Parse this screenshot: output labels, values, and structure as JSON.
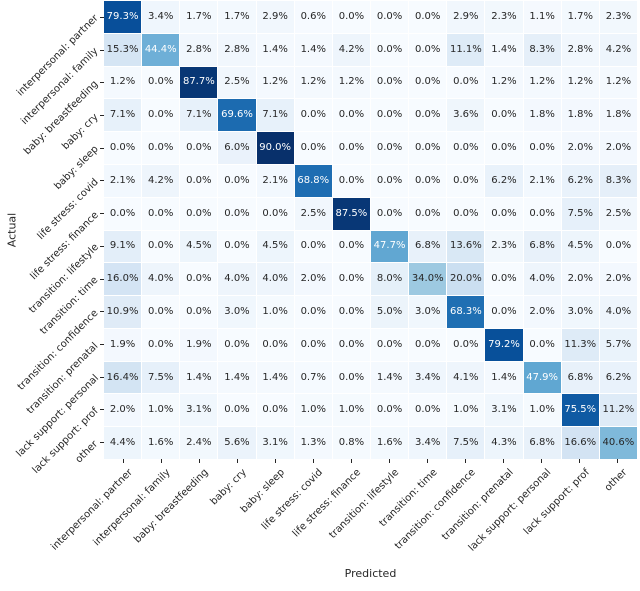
{
  "chart_data": {
    "type": "heatmap",
    "title": "",
    "xlabel": "Predicted",
    "ylabel": "Actual",
    "value_suffix": "%",
    "value_decimals": 1,
    "vmin": 0,
    "vmax": 90,
    "legend": "none",
    "grid": false,
    "colormap": {
      "name": "Blues",
      "stops": [
        [
          0.0,
          "#f7fbff"
        ],
        [
          0.125,
          "#deebf7"
        ],
        [
          0.25,
          "#c6dbef"
        ],
        [
          0.375,
          "#9ecae1"
        ],
        [
          0.5,
          "#6baed6"
        ],
        [
          0.625,
          "#4292c6"
        ],
        [
          0.75,
          "#2171b5"
        ],
        [
          0.875,
          "#08519c"
        ],
        [
          1.0,
          "#08306b"
        ]
      ]
    },
    "annotation_colors": {
      "dark": "#262626",
      "light": "#ffffff"
    },
    "tick_color": "#262626",
    "categories": [
      "interpersonal: partner",
      "interpersonal: family",
      "baby: breastfeeding",
      "baby: cry",
      "baby: sleep",
      "life stress: covid",
      "life stress: finance",
      "transition: lifestyle",
      "transition: time",
      "transition: confidence",
      "transition: prenatal",
      "lack support: personal",
      "lack support: prof",
      "other"
    ],
    "matrix": [
      [
        79.3,
        3.4,
        1.7,
        1.7,
        2.9,
        0.6,
        0.0,
        0.0,
        0.0,
        2.9,
        2.3,
        1.1,
        1.7,
        2.3
      ],
      [
        15.3,
        44.4,
        2.8,
        2.8,
        1.4,
        1.4,
        4.2,
        0.0,
        0.0,
        11.1,
        1.4,
        8.3,
        2.8,
        4.2
      ],
      [
        1.2,
        0.0,
        87.7,
        2.5,
        1.2,
        1.2,
        1.2,
        0.0,
        0.0,
        0.0,
        1.2,
        1.2,
        1.2,
        1.2
      ],
      [
        7.1,
        0.0,
        7.1,
        69.6,
        7.1,
        0.0,
        0.0,
        0.0,
        0.0,
        3.6,
        0.0,
        1.8,
        1.8,
        1.8
      ],
      [
        0.0,
        0.0,
        0.0,
        6.0,
        90.0,
        0.0,
        0.0,
        0.0,
        0.0,
        0.0,
        0.0,
        0.0,
        2.0,
        2.0
      ],
      [
        2.1,
        4.2,
        0.0,
        0.0,
        2.1,
        68.8,
        0.0,
        0.0,
        0.0,
        0.0,
        6.2,
        2.1,
        6.2,
        8.3
      ],
      [
        0.0,
        0.0,
        0.0,
        0.0,
        0.0,
        2.5,
        87.5,
        0.0,
        0.0,
        0.0,
        0.0,
        0.0,
        7.5,
        2.5
      ],
      [
        9.1,
        0.0,
        4.5,
        0.0,
        4.5,
        0.0,
        0.0,
        47.7,
        6.8,
        13.6,
        2.3,
        6.8,
        4.5,
        0.0
      ],
      [
        16.0,
        4.0,
        0.0,
        4.0,
        4.0,
        2.0,
        0.0,
        8.0,
        34.0,
        20.0,
        0.0,
        4.0,
        2.0,
        2.0
      ],
      [
        10.9,
        0.0,
        0.0,
        3.0,
        1.0,
        0.0,
        0.0,
        5.0,
        3.0,
        68.3,
        0.0,
        2.0,
        3.0,
        4.0
      ],
      [
        1.9,
        0.0,
        1.9,
        0.0,
        0.0,
        0.0,
        0.0,
        0.0,
        0.0,
        0.0,
        79.2,
        0.0,
        11.3,
        5.7
      ],
      [
        16.4,
        7.5,
        1.4,
        1.4,
        1.4,
        0.7,
        0.0,
        1.4,
        3.4,
        4.1,
        1.4,
        47.9,
        6.8,
        6.2
      ],
      [
        2.0,
        1.0,
        3.1,
        0.0,
        0.0,
        1.0,
        1.0,
        0.0,
        0.0,
        1.0,
        3.1,
        1.0,
        75.5,
        11.2
      ],
      [
        4.4,
        1.6,
        2.4,
        5.6,
        3.1,
        1.3,
        0.8,
        1.6,
        3.4,
        7.5,
        4.3,
        6.8,
        16.6,
        40.6
      ]
    ]
  }
}
